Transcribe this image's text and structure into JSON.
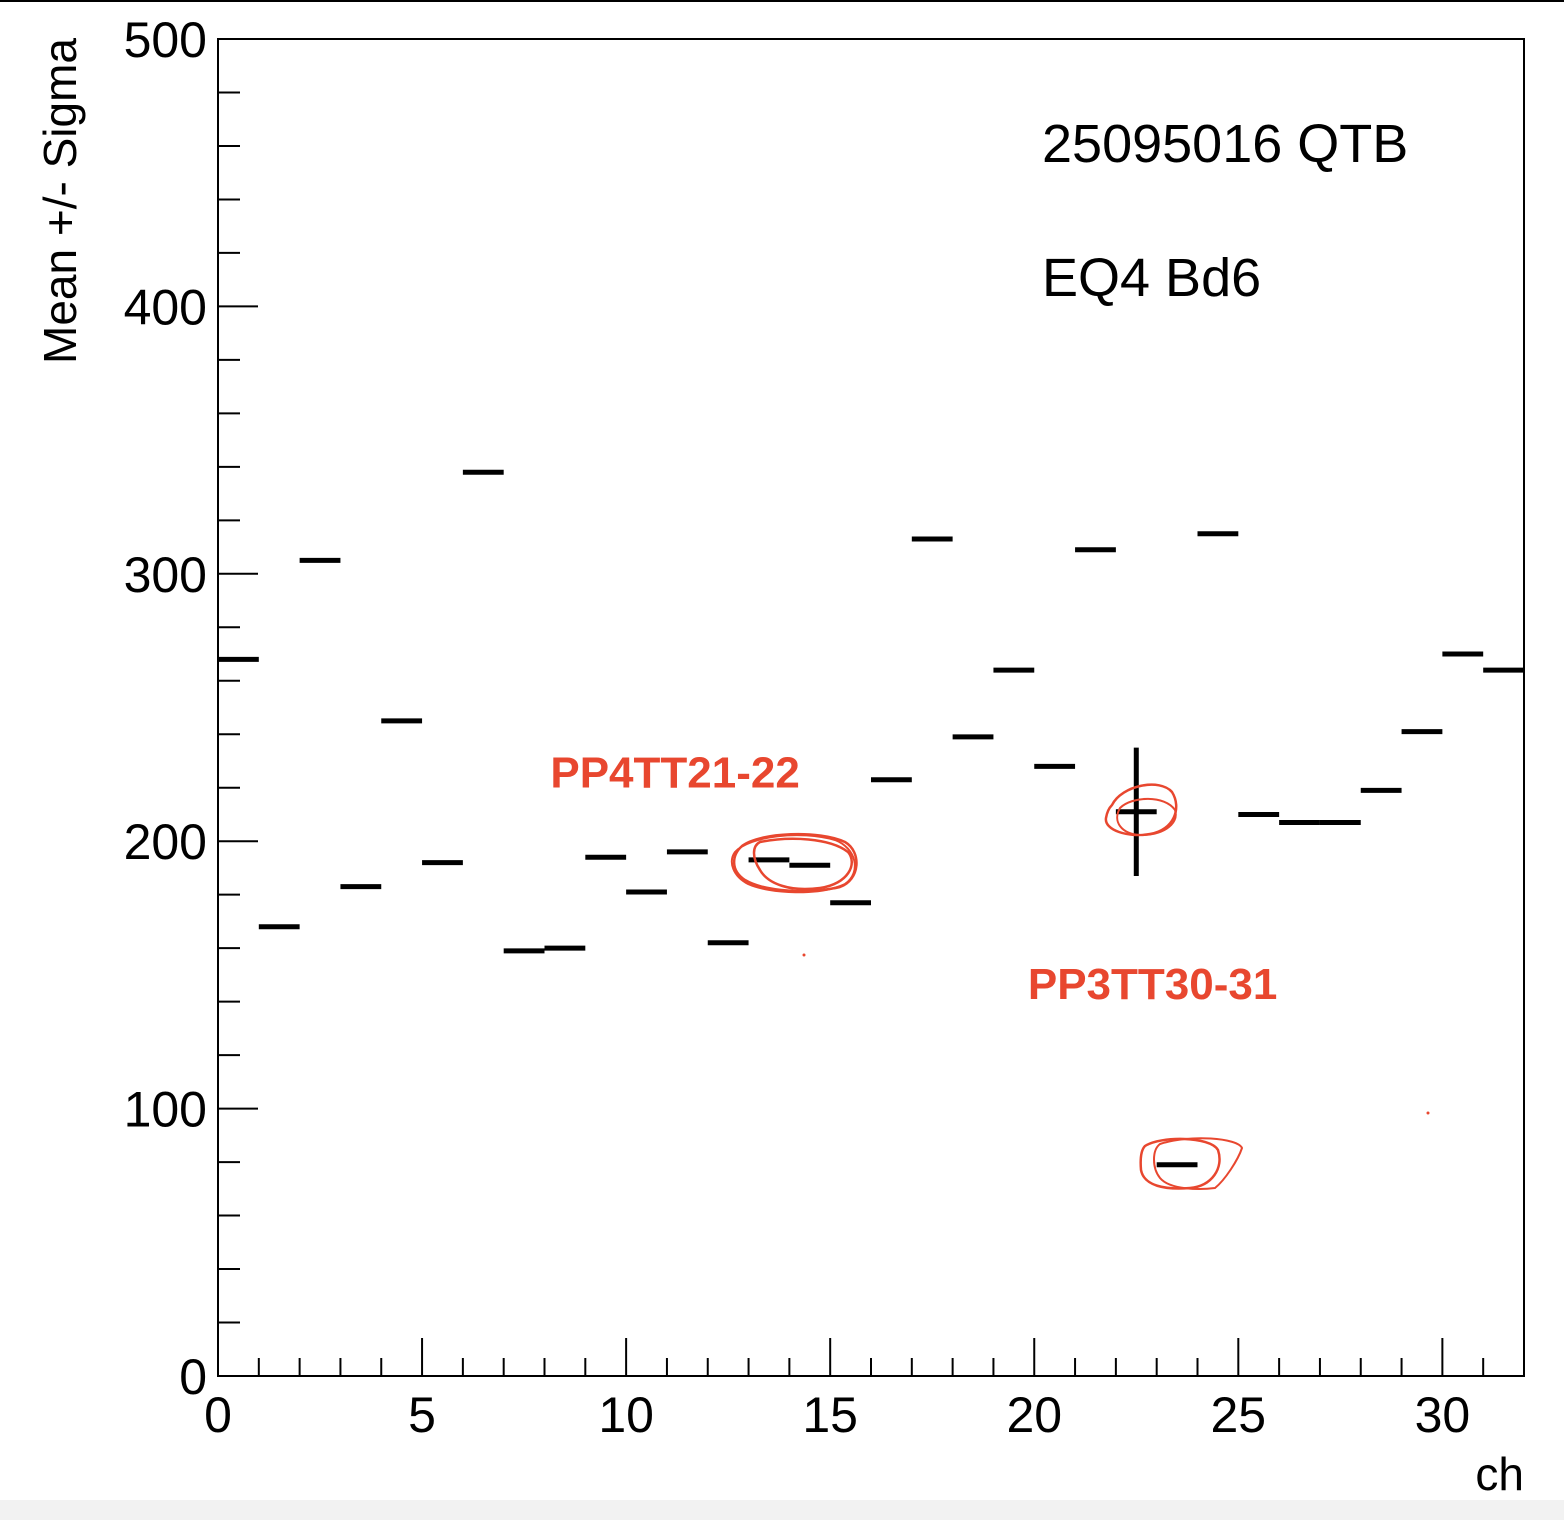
{
  "colors": {
    "axis": "#000000",
    "marker": "#000000",
    "annotation": "#e8472f"
  },
  "chart_data": {
    "type": "scatter",
    "title": "",
    "xlabel": "ch",
    "ylabel": "Mean +/- Sigma",
    "xlim": [
      0,
      32
    ],
    "ylim": [
      0,
      500
    ],
    "x_ticks": [
      "0",
      "5",
      "10",
      "15",
      "20",
      "25",
      "30"
    ],
    "y_ticks": [
      "0",
      "100",
      "200",
      "300",
      "400",
      "500"
    ],
    "text_labels": [
      "25095016 QTB",
      "EQ4 Bd6"
    ],
    "annotations": [
      {
        "text": "PP4TT21-22",
        "x": 11.2,
        "y": 220
      },
      {
        "text": "PP3TT30-31",
        "x": 22.9,
        "y": 141
      }
    ],
    "series": [
      {
        "points": [
          {
            "x": 0.5,
            "y": 268,
            "sigma": 0
          },
          {
            "x": 1.5,
            "y": 168,
            "sigma": 0
          },
          {
            "x": 2.5,
            "y": 305,
            "sigma": 0
          },
          {
            "x": 3.5,
            "y": 183,
            "sigma": 0
          },
          {
            "x": 4.5,
            "y": 245,
            "sigma": 0
          },
          {
            "x": 5.5,
            "y": 192,
            "sigma": 0
          },
          {
            "x": 6.5,
            "y": 338,
            "sigma": 0
          },
          {
            "x": 7.5,
            "y": 159,
            "sigma": 0
          },
          {
            "x": 8.5,
            "y": 160,
            "sigma": 0
          },
          {
            "x": 9.5,
            "y": 194,
            "sigma": 0
          },
          {
            "x": 10.5,
            "y": 181,
            "sigma": 0
          },
          {
            "x": 11.5,
            "y": 196,
            "sigma": 0
          },
          {
            "x": 12.5,
            "y": 162,
            "sigma": 0
          },
          {
            "x": 13.5,
            "y": 193,
            "sigma": 0
          },
          {
            "x": 14.5,
            "y": 191,
            "sigma": 0
          },
          {
            "x": 15.5,
            "y": 177,
            "sigma": 0
          },
          {
            "x": 16.5,
            "y": 223,
            "sigma": 0
          },
          {
            "x": 17.5,
            "y": 313,
            "sigma": 0
          },
          {
            "x": 18.5,
            "y": 239,
            "sigma": 0
          },
          {
            "x": 19.5,
            "y": 264,
            "sigma": 0
          },
          {
            "x": 20.5,
            "y": 228,
            "sigma": 0
          },
          {
            "x": 21.5,
            "y": 309,
            "sigma": 0
          },
          {
            "x": 22.5,
            "y": 211,
            "sigma": 24
          },
          {
            "x": 23.5,
            "y": 79,
            "sigma": 0
          },
          {
            "x": 24.5,
            "y": 315,
            "sigma": 0
          },
          {
            "x": 25.5,
            "y": 210,
            "sigma": 0
          },
          {
            "x": 26.5,
            "y": 207,
            "sigma": 0
          },
          {
            "x": 27.5,
            "y": 207,
            "sigma": 0
          },
          {
            "x": 28.5,
            "y": 219,
            "sigma": 0
          },
          {
            "x": 29.5,
            "y": 241,
            "sigma": 0
          },
          {
            "x": 30.5,
            "y": 270,
            "sigma": 0
          },
          {
            "x": 31.5,
            "y": 264,
            "sigma": 0
          }
        ]
      }
    ],
    "grid": false,
    "legend": "none"
  }
}
